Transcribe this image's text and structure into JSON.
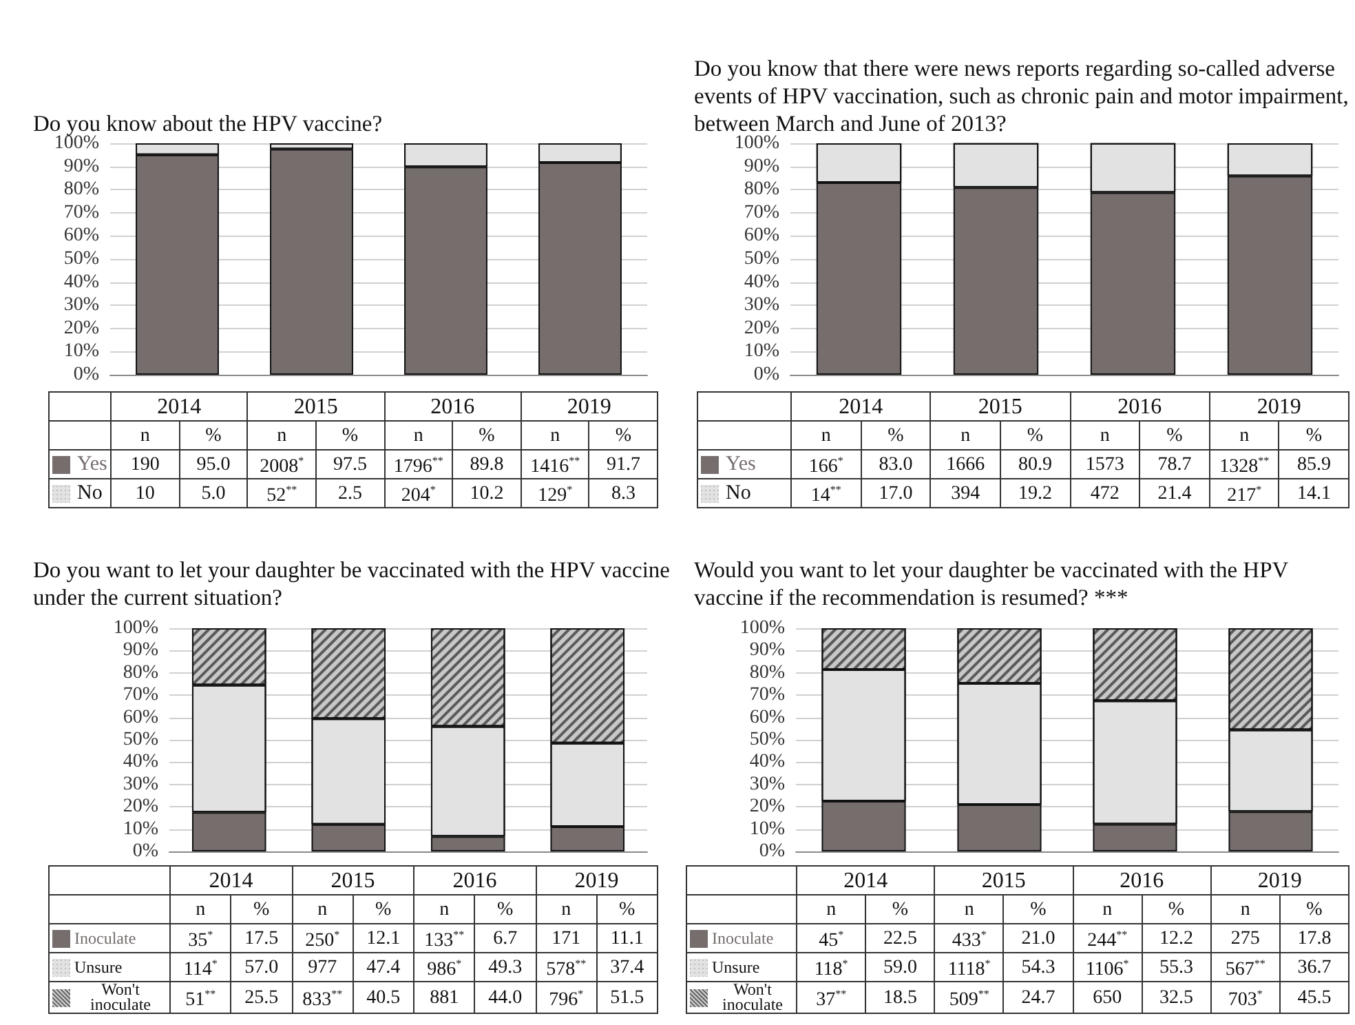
{
  "chart_data": [
    {
      "type": "bar",
      "stacked": true,
      "title": "Do you know about the HPV vaccine?",
      "categories": [
        "2014",
        "2015",
        "2016",
        "2019"
      ],
      "series": [
        {
          "name": "Yes",
          "color": "#766d6d",
          "values": [
            95.0,
            97.5,
            89.8,
            91.7
          ],
          "value_labels": [
            "95.0",
            "97.5",
            "89.8",
            "91.7"
          ]
        },
        {
          "name": "No",
          "color": "#e2e2e2",
          "values": [
            5.0,
            2.5,
            10.2,
            8.3
          ],
          "value_labels": [
            "5.0",
            "2.5",
            "10.2",
            "8.3"
          ]
        }
      ],
      "ylim": [
        0,
        100
      ],
      "yticks": [
        {
          "value": 0,
          "label": "0%"
        },
        {
          "value": 10,
          "label": "10%"
        },
        {
          "value": 20,
          "label": "20%"
        },
        {
          "value": 30,
          "label": "30%"
        },
        {
          "value": 40,
          "label": "40%"
        },
        {
          "value": 50,
          "label": "50%"
        },
        {
          "value": 60,
          "label": "60%"
        },
        {
          "value": 70,
          "label": "70%"
        },
        {
          "value": 80,
          "label": "80%"
        },
        {
          "value": 90,
          "label": "90%"
        },
        {
          "value": 100,
          "label": "100%"
        }
      ],
      "grid": "y",
      "legend": "bottom",
      "tick_labels": "y",
      "annotations": [
        "n",
        "%",
        "190",
        "2008$^{*}$",
        "1796$^{**}$",
        "1416$^{**}$",
        "10",
        "52$^{**}$",
        "204$^{*}$",
        "129$^{*}$"
      ]
    },
    {
      "type": "bar",
      "stacked": true,
      "title": "Do you know that there were news reports regarding so-called adverse events of HPV vaccination, such as chronic pain and motor impairment, between March and June of 2013?",
      "categories": [
        "2014",
        "2015",
        "2016",
        "2019"
      ],
      "series": [
        {
          "name": "Yes",
          "color": "#766d6d",
          "values": [
            83.0,
            80.9,
            78.7,
            85.9
          ],
          "value_labels": [
            "83.0",
            "80.9",
            "78.7",
            "85.9"
          ]
        },
        {
          "name": "No",
          "color": "#e2e2e2",
          "values": [
            17.0,
            19.2,
            21.4,
            14.1
          ],
          "value_labels": [
            "17.0",
            "19.2",
            "21.4",
            "14.1"
          ]
        }
      ],
      "ylim": [
        0,
        100
      ],
      "yticks": [
        {
          "value": 0,
          "label": "0%"
        },
        {
          "value": 10,
          "label": "10%"
        },
        {
          "value": 20,
          "label": "20%"
        },
        {
          "value": 30,
          "label": "30%"
        },
        {
          "value": 40,
          "label": "40%"
        },
        {
          "value": 50,
          "label": "50%"
        },
        {
          "value": 60,
          "label": "60%"
        },
        {
          "value": 70,
          "label": "70%"
        },
        {
          "value": 80,
          "label": "80%"
        },
        {
          "value": 90,
          "label": "90%"
        },
        {
          "value": 100,
          "label": "100%"
        }
      ],
      "grid": "y",
      "legend": "bottom",
      "tick_labels": "y",
      "annotations": [
        "n",
        "%",
        "166$^{*}$",
        "1666",
        "1573",
        "1328$^{**}$",
        "14$^{**}$",
        "394",
        "472",
        "217$^{*}$"
      ]
    },
    {
      "type": "bar",
      "stacked": true,
      "title": "Do you want to let your daughter be vaccinated with the HPV vaccine under the current situation?",
      "categories": [
        "2014",
        "2015",
        "2016",
        "2019"
      ],
      "series": [
        {
          "name": "Inoculate",
          "color": "#766d6d",
          "values": [
            17.5,
            12.1,
            6.7,
            11.1
          ],
          "value_labels": [
            "17.5",
            "12.1",
            "6.7",
            "11.1"
          ]
        },
        {
          "name": "Unsure",
          "color": "#e2e2e2",
          "values": [
            57.0,
            47.4,
            49.3,
            37.4
          ],
          "value_labels": [
            "57.0",
            "47.4",
            "49.3",
            "37.4"
          ]
        },
        {
          "name": "Won't inoculate",
          "color": "#c8c8c8",
          "values": [
            25.5,
            40.5,
            44.0,
            51.5
          ],
          "value_labels": [
            "25.5",
            "40.5",
            "44.0",
            "51.5"
          ]
        }
      ],
      "ylim": [
        0,
        100
      ],
      "yticks": [
        {
          "value": 0,
          "label": "0%"
        },
        {
          "value": 10,
          "label": "10%"
        },
        {
          "value": 20,
          "label": "20%"
        },
        {
          "value": 30,
          "label": "30%"
        },
        {
          "value": 40,
          "label": "40%"
        },
        {
          "value": 50,
          "label": "50%"
        },
        {
          "value": 60,
          "label": "60%"
        },
        {
          "value": 70,
          "label": "70%"
        },
        {
          "value": 80,
          "label": "80%"
        },
        {
          "value": 90,
          "label": "90%"
        },
        {
          "value": 100,
          "label": "100%"
        }
      ],
      "grid": "y",
      "legend": "bottom",
      "tick_labels": "y",
      "annotations": [
        "n",
        "%",
        "35$^{*}$",
        "250$^{*}$",
        "133$^{**}$",
        "171",
        "114$^{*}$",
        "977",
        "986$^{*}$",
        "578$^{**}$",
        "51$^{**}$",
        "833$^{**}$",
        "881",
        "796$^{*}$"
      ]
    },
    {
      "type": "bar",
      "stacked": true,
      "title": "Would you want to let your daughter be vaccinated with the HPV vaccine if the recommendation is resumed? ***",
      "categories": [
        "2014",
        "2015",
        "2016",
        "2019"
      ],
      "series": [
        {
          "name": "Inoculate",
          "color": "#766d6d",
          "values": [
            22.5,
            21.0,
            12.2,
            17.8
          ],
          "value_labels": [
            "22.5",
            "21.0",
            "12.2",
            "17.8"
          ]
        },
        {
          "name": "Unsure",
          "color": "#e2e2e2",
          "values": [
            59.0,
            54.3,
            55.3,
            36.7
          ],
          "value_labels": [
            "59.0",
            "54.3",
            "55.3",
            "36.7"
          ]
        },
        {
          "name": "Won't inoculate",
          "color": "#c8c8c8",
          "values": [
            18.5,
            24.7,
            32.5,
            45.5
          ],
          "value_labels": [
            "18.5",
            "24.7",
            "32.5",
            "45.5"
          ]
        }
      ],
      "ylim": [
        0,
        100
      ],
      "yticks": [
        {
          "value": 0,
          "label": "0%"
        },
        {
          "value": 10,
          "label": "10%"
        },
        {
          "value": 20,
          "label": "20%"
        },
        {
          "value": 30,
          "label": "30%"
        },
        {
          "value": 40,
          "label": "40%"
        },
        {
          "value": 50,
          "label": "50%"
        },
        {
          "value": 60,
          "label": "60%"
        },
        {
          "value": 70,
          "label": "70%"
        },
        {
          "value": 80,
          "label": "80%"
        },
        {
          "value": 90,
          "label": "90%"
        },
        {
          "value": 100,
          "label": "100%"
        }
      ],
      "grid": "y",
      "legend": "bottom",
      "tick_labels": "y",
      "annotations": [
        "n",
        "%",
        "45$^{*}$",
        "433$^{*}$",
        "244$^{**}$",
        "275",
        "118$^{*}$",
        "1118$^{*}$",
        "1106$^{*}$",
        "567$^{**}$",
        "37$^{**}$",
        "509$^{**}$",
        "650",
        "703$^{*}$"
      ]
    }
  ]
}
